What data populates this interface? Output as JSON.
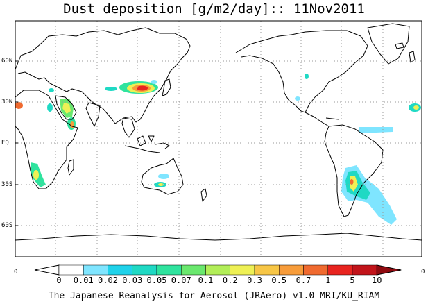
{
  "title": "Dust deposition [g/m2/day]:: 11Nov2011",
  "credit": "The Japanese Reanalysis for Aerosol (JRAero) v1.0 MRI/KU_RIAM",
  "lat_labels": [
    "60N",
    "30N",
    "EQ",
    "30S",
    "60S"
  ],
  "edge_left": "0",
  "edge_right": "0",
  "colorbar": {
    "labels": [
      "0",
      "0.01",
      "0.02",
      "0.03",
      "0.05",
      "0.07",
      "0.1",
      "0.2",
      "0.3",
      "0.5",
      "0.7",
      "1",
      "5",
      "10"
    ],
    "colors": [
      "#ffffff",
      "#ffffff",
      "#7fe5ff",
      "#1fd2ea",
      "#1fd9c4",
      "#2fe39e",
      "#6ae86e",
      "#b2ee58",
      "#eef055",
      "#f7c646",
      "#f79c3a",
      "#f06a2f",
      "#e8241f",
      "#c2141a",
      "#8f0a10"
    ]
  },
  "colors": {
    "coast": "#000000",
    "grid": "#9a9a9a"
  }
}
